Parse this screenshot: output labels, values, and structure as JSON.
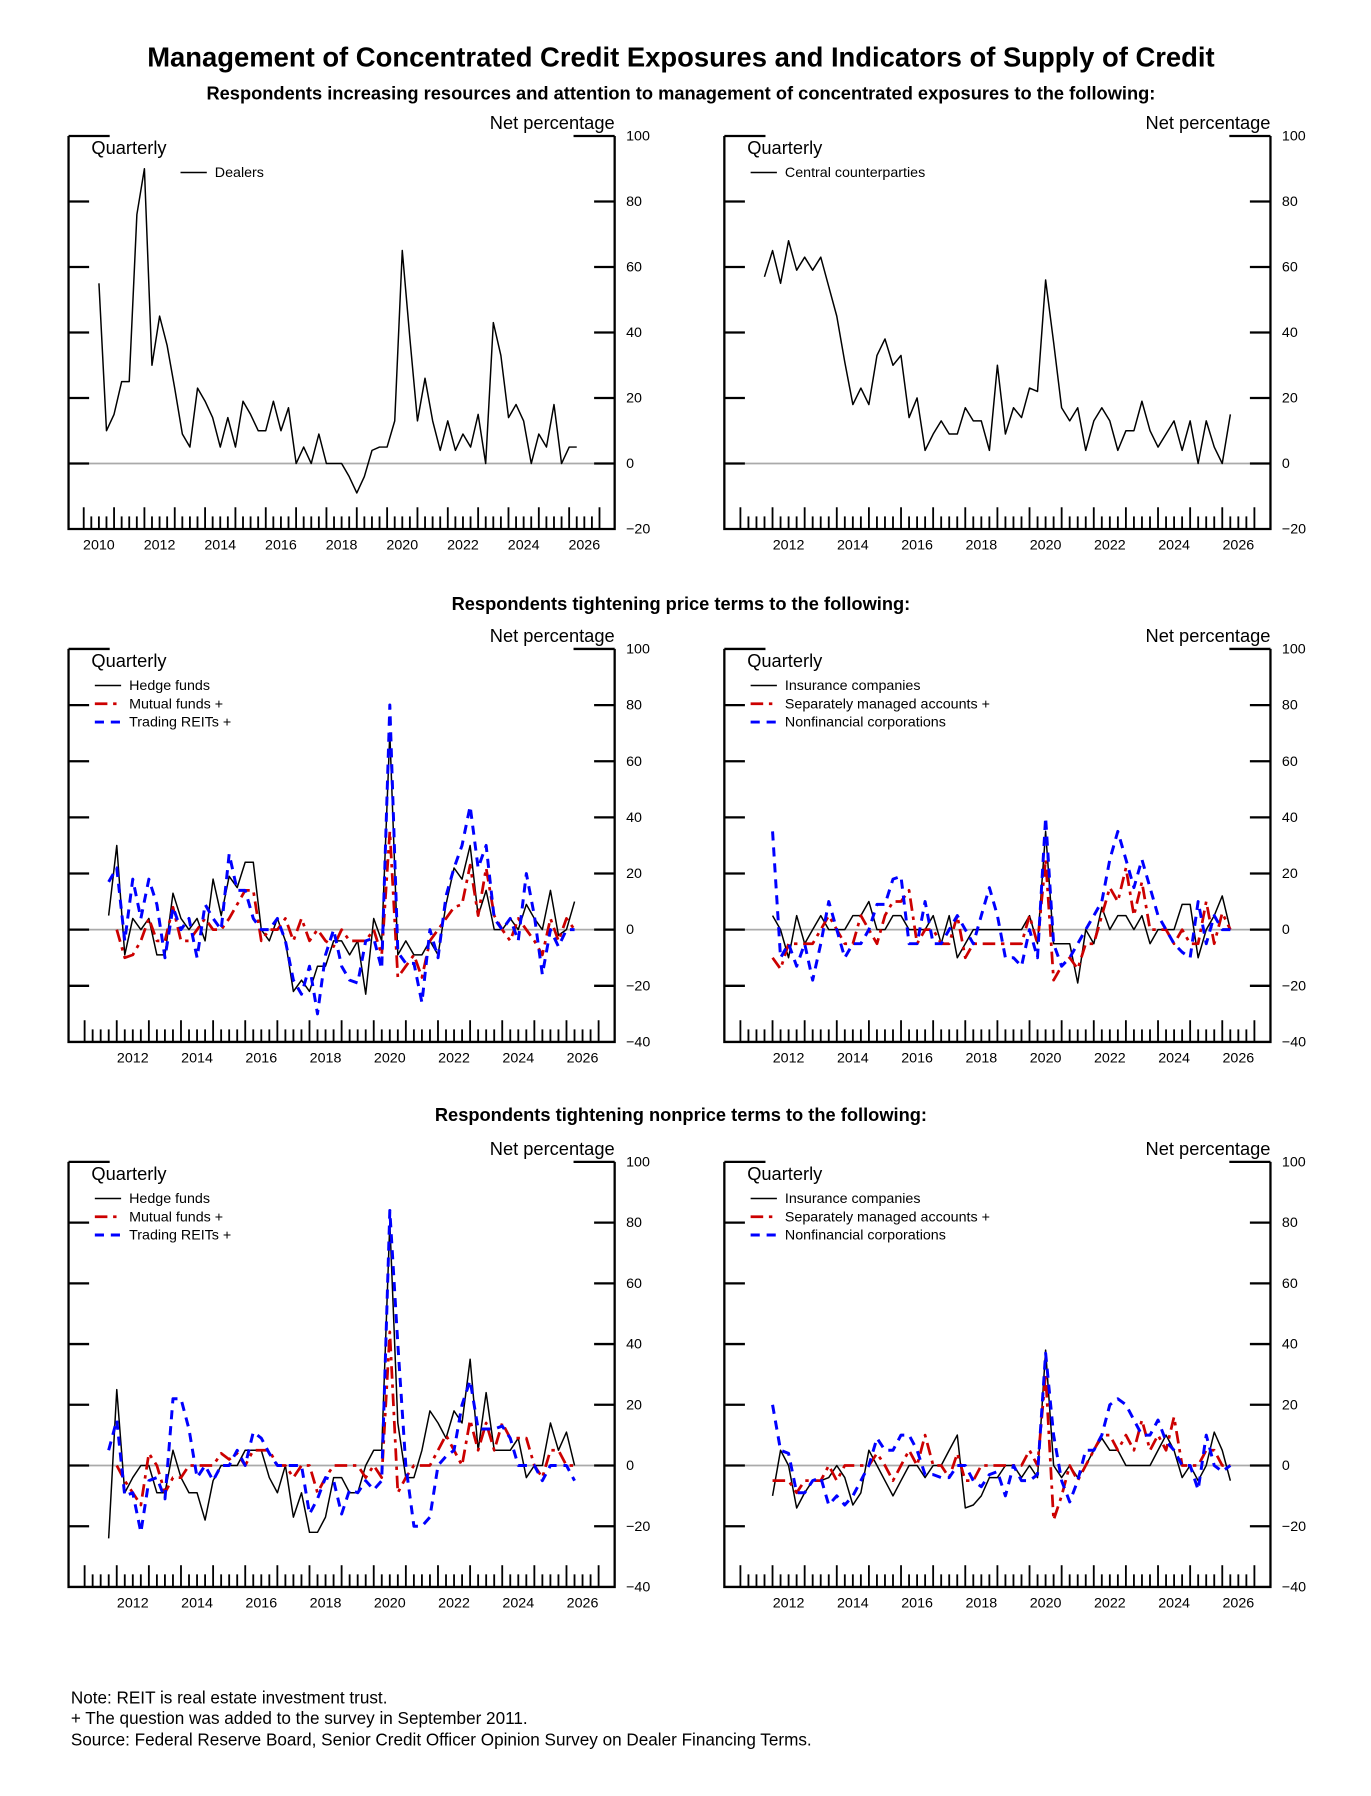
{
  "title": "Management of Concentrated Credit Exposures and Indicators of Supply of Credit",
  "sections": [
    {
      "subtitle": "Respondents increasing resources and attention to management of concentrated exposures to the following:"
    },
    {
      "subtitle": "Respondents tightening price terms to the following:"
    },
    {
      "subtitle": "Respondents tightening nonprice terms to the following:"
    }
  ],
  "notes": [
    "Note:  REIT is real estate investment trust.",
    "+ The question was added to the survey in September 2011.",
    "Source:  Federal Reserve Board, Senior Credit Officer Opinion Survey on Dealer Financing Terms."
  ],
  "colors": {
    "black": "#000000",
    "red": "#cc0000",
    "blue": "#0000ff",
    "zero_line": "#aaaaaa"
  },
  "chart_data": [
    {
      "type": "line",
      "section": 0,
      "frequency_label": "Quarterly",
      "ylabel": "Net percentage",
      "xlim": [
        2009.5,
        2027.5
      ],
      "ylim": [
        -20,
        100
      ],
      "yticks": [
        -20,
        0,
        20,
        40,
        60,
        80,
        100
      ],
      "xtick_labels": [
        "2010",
        "2012",
        "2014",
        "2016",
        "2018",
        "2020",
        "2022",
        "2024",
        "2026"
      ],
      "series": [
        {
          "name": "Dealers",
          "color": "#000000",
          "style": "solid",
          "x_start": 2010.5,
          "x_step": 0.25,
          "values": [
            55,
            10,
            15,
            25,
            25,
            76,
            90,
            30,
            45,
            36,
            23,
            9,
            5,
            23,
            19,
            14,
            5,
            14,
            5,
            19,
            15,
            10,
            10,
            19,
            10,
            17,
            0,
            5,
            0,
            9,
            0,
            0,
            0,
            -4,
            -9,
            -4,
            4,
            5,
            5,
            13,
            65,
            38,
            13,
            26,
            13,
            4,
            13,
            4,
            9,
            5,
            15,
            0,
            43,
            33,
            14,
            18,
            13,
            0,
            9,
            5,
            18,
            0,
            5,
            5
          ]
        }
      ]
    },
    {
      "type": "line",
      "section": 0,
      "frequency_label": "Quarterly",
      "ylabel": "Net percentage",
      "xlim": [
        2010.5,
        2027.5
      ],
      "ylim": [
        -20,
        100
      ],
      "yticks": [
        -20,
        0,
        20,
        40,
        60,
        80,
        100
      ],
      "xtick_labels": [
        "2012",
        "2014",
        "2016",
        "2018",
        "2020",
        "2022",
        "2024",
        "2026"
      ],
      "series": [
        {
          "name": "Central counterparties",
          "color": "#000000",
          "style": "solid",
          "x_start": 2011.75,
          "x_step": 0.25,
          "values": [
            57,
            65,
            55,
            68,
            59,
            63,
            59,
            63,
            54,
            45,
            31,
            18,
            23,
            18,
            33,
            38,
            30,
            33,
            14,
            20,
            4,
            9,
            13,
            9,
            9,
            17,
            13,
            13,
            4,
            30,
            9,
            17,
            14,
            23,
            22,
            56,
            37,
            17,
            13,
            17,
            4,
            13,
            17,
            13,
            4,
            10,
            10,
            19,
            10,
            5,
            9,
            13,
            4,
            13,
            0,
            13,
            5,
            0,
            15
          ]
        }
      ]
    },
    {
      "type": "line",
      "section": 1,
      "frequency_label": "Quarterly",
      "ylabel": "Net percentage",
      "xlim": [
        2010.5,
        2027.5
      ],
      "ylim": [
        -40,
        100
      ],
      "yticks": [
        -40,
        -20,
        0,
        20,
        40,
        60,
        80,
        100
      ],
      "xtick_labels": [
        "2012",
        "2014",
        "2016",
        "2018",
        "2020",
        "2022",
        "2024",
        "2026"
      ],
      "series": [
        {
          "name": "Hedge funds",
          "color": "#000000",
          "style": "solid",
          "x_start": 2011.75,
          "x_step": 0.25,
          "values": [
            5,
            30,
            -9,
            4,
            0,
            4,
            -9,
            -9,
            13,
            4,
            0,
            4,
            -4,
            18,
            5,
            19,
            15,
            24,
            24,
            0,
            -4,
            4,
            -4,
            -22,
            -18,
            -22,
            -13,
            -13,
            -4,
            -4,
            -9,
            -4,
            -23,
            4,
            -4,
            70,
            -9,
            -4,
            -9,
            -9,
            -4,
            -9,
            9,
            22,
            18,
            30,
            5,
            14,
            0,
            0,
            4,
            0,
            9,
            4,
            0,
            14,
            -2,
            0,
            10
          ]
        },
        {
          "name": "Mutual funds +",
          "color": "#cc0000",
          "style": "dashdot",
          "x_start": 2012.0,
          "x_step": 0.25,
          "values": [
            0,
            -10,
            -9,
            -4,
            4,
            -4,
            -4,
            8,
            -4,
            -4,
            0,
            4,
            0,
            0,
            4,
            9,
            14,
            14,
            -4,
            0,
            0,
            4,
            -4,
            4,
            -4,
            0,
            -4,
            -6,
            0,
            -4,
            -4,
            -4,
            0,
            -9,
            35,
            -17,
            -13,
            -9,
            -17,
            -4,
            0,
            4,
            8,
            9,
            23,
            5,
            22,
            5,
            0,
            -4,
            4,
            0,
            -4,
            -9,
            4,
            -4,
            4,
            0
          ]
        },
        {
          "name": "Trading REITs +",
          "color": "#0000ff",
          "style": "dashed",
          "x_start": 2011.75,
          "x_step": 0.25,
          "values": [
            17,
            22,
            -4,
            18,
            4,
            18,
            9,
            -10,
            8,
            0,
            4,
            -10,
            9,
            4,
            0,
            27,
            14,
            14,
            4,
            0,
            0,
            4,
            -4,
            -18,
            -23,
            -13,
            -30,
            -9,
            0,
            -13,
            -18,
            -19,
            -4,
            -3,
            -14,
            80,
            -8,
            -12,
            -12,
            -26,
            0,
            -10,
            12,
            22,
            30,
            44,
            22,
            30,
            4,
            0,
            4,
            -4,
            20,
            5,
            -16,
            0,
            -6,
            0,
            0
          ]
        }
      ]
    },
    {
      "type": "line",
      "section": 1,
      "frequency_label": "Quarterly",
      "ylabel": "Net percentage",
      "xlim": [
        2010.5,
        2027.5
      ],
      "ylim": [
        -40,
        100
      ],
      "yticks": [
        -40,
        -20,
        0,
        20,
        40,
        60,
        80,
        100
      ],
      "xtick_labels": [
        "2012",
        "2014",
        "2016",
        "2018",
        "2020",
        "2022",
        "2024",
        "2026"
      ],
      "series": [
        {
          "name": "Insurance companies",
          "color": "#000000",
          "style": "solid",
          "x_start": 2012.0,
          "x_step": 0.25,
          "values": [
            5,
            0,
            -10,
            5,
            -5,
            0,
            5,
            0,
            0,
            0,
            5,
            5,
            10,
            0,
            0,
            5,
            5,
            0,
            0,
            0,
            5,
            -5,
            5,
            -10,
            -5,
            0,
            0,
            0,
            0,
            0,
            0,
            0,
            5,
            -5,
            35,
            -5,
            -5,
            -5,
            -19,
            0,
            -5,
            8,
            0,
            5,
            5,
            0,
            5,
            -5,
            0,
            0,
            0,
            9,
            9,
            -10,
            0,
            5,
            12,
            0
          ]
        },
        {
          "name": "Separately managed accounts +",
          "color": "#cc0000",
          "style": "dashdot",
          "x_start": 2012.0,
          "x_step": 0.25,
          "values": [
            -10,
            -14,
            -5,
            -5,
            -5,
            -5,
            0,
            5,
            0,
            -5,
            -5,
            5,
            0,
            -5,
            5,
            10,
            10,
            14,
            -5,
            0,
            0,
            -5,
            -5,
            5,
            -10,
            -5,
            -5,
            -5,
            -5,
            -5,
            -5,
            -5,
            5,
            -5,
            25,
            -18,
            -13,
            -10,
            -14,
            -5,
            -5,
            5,
            15,
            10,
            22,
            5,
            17,
            0,
            0,
            0,
            -5,
            0,
            -5,
            -5,
            10,
            -5,
            6,
            0
          ]
        },
        {
          "name": "Nonfinancial corporations",
          "color": "#0000ff",
          "style": "dashed",
          "x_start": 2012.0,
          "x_step": 0.25,
          "values": [
            35,
            -10,
            -5,
            -13,
            -5,
            -18,
            -5,
            10,
            0,
            -10,
            -5,
            -5,
            0,
            9,
            9,
            18,
            19,
            -5,
            -5,
            10,
            -5,
            -5,
            0,
            5,
            0,
            -5,
            5,
            15,
            5,
            -10,
            -10,
            -13,
            0,
            -10,
            40,
            -5,
            -13,
            -10,
            -5,
            0,
            5,
            10,
            25,
            35,
            25,
            15,
            25,
            15,
            5,
            0,
            -5,
            -8,
            -10,
            10,
            -5,
            5,
            0,
            0
          ]
        }
      ]
    },
    {
      "type": "line",
      "section": 2,
      "frequency_label": "Quarterly",
      "ylabel": "Net percentage",
      "xlim": [
        2010.5,
        2027.5
      ],
      "ylim": [
        -40,
        100
      ],
      "yticks": [
        -40,
        -20,
        0,
        20,
        40,
        60,
        80,
        100
      ],
      "xtick_labels": [
        "2012",
        "2014",
        "2016",
        "2018",
        "2020",
        "2022",
        "2024",
        "2026"
      ],
      "series": [
        {
          "name": "Hedge funds",
          "color": "#000000",
          "style": "solid",
          "x_start": 2011.75,
          "x_step": 0.25,
          "values": [
            -24,
            25,
            -9,
            -4,
            0,
            0,
            -9,
            -9,
            5,
            -4,
            -9,
            -9,
            -18,
            -5,
            0,
            0,
            0,
            5,
            5,
            5,
            -4,
            -9,
            0,
            -17,
            -9,
            -22,
            -22,
            -17,
            -4,
            -4,
            -9,
            -9,
            0,
            5,
            5,
            80,
            14,
            -4,
            -4,
            5,
            18,
            14,
            9,
            18,
            14,
            35,
            5,
            24,
            5,
            5,
            5,
            9,
            -4,
            0,
            0,
            14,
            5,
            11,
            0
          ]
        },
        {
          "name": "Mutual funds +",
          "color": "#cc0000",
          "style": "dashdot",
          "x_start": 2012.0,
          "x_step": 0.25,
          "values": [
            0,
            -5,
            -9,
            -13,
            4,
            0,
            -9,
            -4,
            -4,
            0,
            0,
            0,
            0,
            4,
            2,
            4,
            0,
            5,
            5,
            5,
            0,
            0,
            -4,
            0,
            0,
            -9,
            -4,
            0,
            0,
            0,
            0,
            -4,
            0,
            -4,
            44,
            -9,
            -4,
            0,
            0,
            0,
            5,
            10,
            5,
            0,
            15,
            5,
            14,
            5,
            14,
            9,
            9,
            9,
            0,
            -4,
            5,
            5,
            0,
            0
          ]
        },
        {
          "name": "Trading REITs +",
          "color": "#0000ff",
          "style": "dashed",
          "x_start": 2011.75,
          "x_step": 0.25,
          "values": [
            5,
            15,
            -10,
            -9,
            -22,
            -5,
            -4,
            -11,
            22,
            22,
            12,
            -4,
            0,
            -5,
            0,
            0,
            5,
            0,
            11,
            9,
            4,
            0,
            0,
            0,
            0,
            -16,
            -11,
            -4,
            -5,
            -16,
            -8,
            -9,
            -5,
            -8,
            -5,
            84,
            40,
            0,
            -20,
            -20,
            -17,
            0,
            3,
            5,
            20,
            28,
            12,
            12,
            12,
            13,
            9,
            0,
            0,
            0,
            -5,
            0,
            0,
            0,
            -5
          ]
        }
      ]
    },
    {
      "type": "line",
      "section": 2,
      "frequency_label": "Quarterly",
      "ylabel": "Net percentage",
      "xlim": [
        2010.5,
        2027.5
      ],
      "ylim": [
        -40,
        100
      ],
      "yticks": [
        -40,
        -20,
        0,
        20,
        40,
        60,
        80,
        100
      ],
      "xtick_labels": [
        "2012",
        "2014",
        "2016",
        "2018",
        "2020",
        "2022",
        "2024",
        "2026"
      ],
      "series": [
        {
          "name": "Insurance companies",
          "color": "#000000",
          "style": "solid",
          "x_start": 2012.0,
          "x_step": 0.25,
          "values": [
            -10,
            5,
            0,
            -14,
            -9,
            -5,
            -5,
            -4,
            0,
            -4,
            -13,
            -9,
            5,
            0,
            -5,
            -10,
            -5,
            0,
            0,
            -4,
            0,
            0,
            5,
            10,
            -14,
            -13,
            -10,
            -4,
            -4,
            0,
            0,
            -4,
            0,
            -4,
            38,
            0,
            -4,
            0,
            -4,
            0,
            5,
            9,
            5,
            5,
            0,
            0,
            0,
            0,
            5,
            10,
            5,
            -4,
            0,
            -5,
            0,
            11,
            5,
            -5
          ]
        },
        {
          "name": "Separately managed accounts +",
          "color": "#cc0000",
          "style": "dashdot",
          "x_start": 2012.0,
          "x_step": 0.25,
          "values": [
            -5,
            -5,
            -5,
            -9,
            -5,
            -5,
            -5,
            0,
            -5,
            0,
            0,
            0,
            0,
            4,
            0,
            -5,
            0,
            5,
            0,
            10,
            0,
            0,
            -4,
            4,
            -5,
            -5,
            0,
            0,
            0,
            0,
            0,
            0,
            5,
            0,
            30,
            -18,
            -10,
            0,
            -5,
            0,
            5,
            10,
            10,
            5,
            10,
            5,
            15,
            5,
            10,
            5,
            16,
            0,
            0,
            0,
            5,
            5,
            0,
            0
          ]
        },
        {
          "name": "Nonfinancial corporations",
          "color": "#0000ff",
          "style": "dashed",
          "x_start": 2012.0,
          "x_step": 0.25,
          "values": [
            20,
            5,
            4,
            -9,
            -9,
            -5,
            -4,
            -13,
            -10,
            -13,
            -10,
            -5,
            0,
            9,
            5,
            5,
            10,
            10,
            5,
            -3,
            -3,
            -4,
            -4,
            0,
            0,
            -5,
            -7,
            -3,
            -2,
            -10,
            0,
            -5,
            -5,
            -3,
            37,
            10,
            -5,
            -12,
            -5,
            5,
            5,
            10,
            20,
            22,
            20,
            15,
            10,
            10,
            15,
            8,
            5,
            0,
            0,
            -8,
            10,
            0,
            -2,
            0
          ]
        }
      ]
    }
  ]
}
